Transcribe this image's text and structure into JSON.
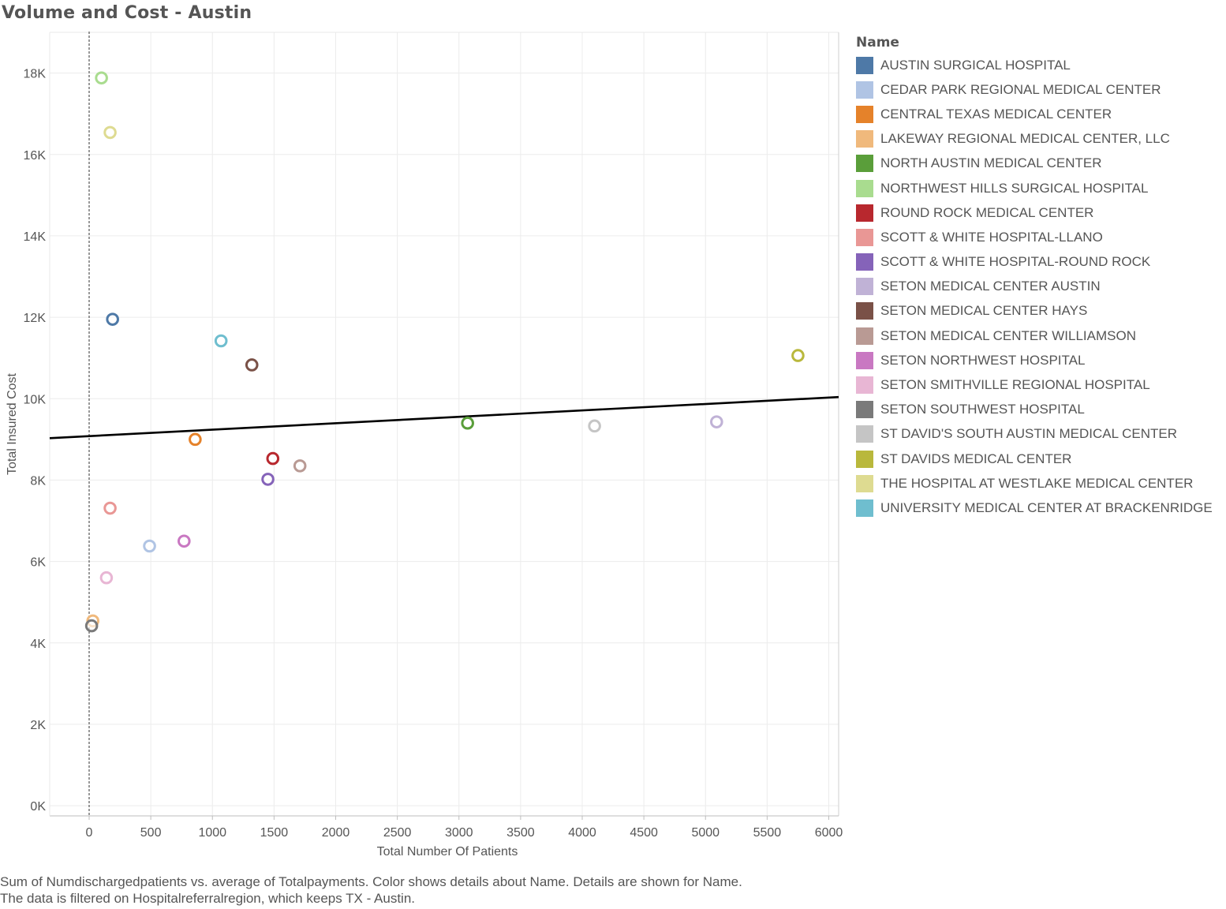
{
  "chart_data": {
    "type": "scatter",
    "title": "Volume and Cost - Austin",
    "xlabel": "Total Number Of Patients",
    "ylabel": "Total Insured Cost",
    "xlim": [
      -320,
      6080
    ],
    "ylim": [
      -250,
      19000
    ],
    "x_ticks": [
      {
        "value": 0,
        "label": "0"
      },
      {
        "value": 500,
        "label": "500"
      },
      {
        "value": 1000,
        "label": "1000"
      },
      {
        "value": 1500,
        "label": "1500"
      },
      {
        "value": 2000,
        "label": "2000"
      },
      {
        "value": 2500,
        "label": "2500"
      },
      {
        "value": 3000,
        "label": "3000"
      },
      {
        "value": 3500,
        "label": "3500"
      },
      {
        "value": 4000,
        "label": "4000"
      },
      {
        "value": 4500,
        "label": "4500"
      },
      {
        "value": 5000,
        "label": "5000"
      },
      {
        "value": 5500,
        "label": "5500"
      },
      {
        "value": 6000,
        "label": "6000"
      }
    ],
    "y_ticks": [
      {
        "value": 0,
        "label": "0K"
      },
      {
        "value": 2000,
        "label": "2K"
      },
      {
        "value": 4000,
        "label": "4K"
      },
      {
        "value": 6000,
        "label": "6K"
      },
      {
        "value": 8000,
        "label": "8K"
      },
      {
        "value": 10000,
        "label": "10K"
      },
      {
        "value": 12000,
        "label": "12K"
      },
      {
        "value": 14000,
        "label": "14K"
      },
      {
        "value": 16000,
        "label": "16K"
      },
      {
        "value": 18000,
        "label": "18K"
      }
    ],
    "grid": true,
    "legend_title": "Name",
    "legend_position": "right",
    "trend_line": {
      "x": [
        -320,
        6080
      ],
      "y": [
        9030,
        10040
      ]
    },
    "reference_line_x": 0,
    "series": [
      {
        "name": "AUSTIN SURGICAL HOSPITAL",
        "color": "#4e79a7",
        "x": 190,
        "y": 11950
      },
      {
        "name": "CEDAR PARK REGIONAL MEDICAL CENTER",
        "color": "#b0c4e4",
        "x": 490,
        "y": 6380
      },
      {
        "name": "CENTRAL TEXAS MEDICAL CENTER",
        "color": "#e5822a",
        "x": 860,
        "y": 9000
      },
      {
        "name": "LAKEWAY REGIONAL MEDICAL CENTER, LLC",
        "color": "#f0b97c",
        "x": 30,
        "y": 4540
      },
      {
        "name": "NORTH AUSTIN MEDICAL CENTER",
        "color": "#5a9e3a",
        "x": 3070,
        "y": 9400
      },
      {
        "name": "NORTHWEST HILLS SURGICAL HOSPITAL",
        "color": "#a9dc8f",
        "x": 100,
        "y": 17880
      },
      {
        "name": "ROUND ROCK MEDICAL CENTER",
        "color": "#b8282e",
        "x": 1490,
        "y": 8530
      },
      {
        "name": "SCOTT & WHITE HOSPITAL-LLANO",
        "color": "#e99795",
        "x": 170,
        "y": 7310
      },
      {
        "name": "SCOTT & WHITE HOSPITAL-ROUND ROCK",
        "color": "#8563b9",
        "x": 1450,
        "y": 8020
      },
      {
        "name": "SETON MEDICAL CENTER AUSTIN",
        "color": "#c0b2d6",
        "x": 5090,
        "y": 9430
      },
      {
        "name": "SETON MEDICAL CENTER HAYS",
        "color": "#7a5147",
        "x": 1320,
        "y": 10830
      },
      {
        "name": "SETON MEDICAL CENTER WILLIAMSON",
        "color": "#b99a94",
        "x": 1710,
        "y": 8350
      },
      {
        "name": "SETON  NORTHWEST HOSPITAL",
        "color": "#c978c2",
        "x": 770,
        "y": 6500
      },
      {
        "name": "SETON SMITHVILLE REGIONAL HOSPITAL",
        "color": "#e8b6d4",
        "x": 140,
        "y": 5600
      },
      {
        "name": "SETON SOUTHWEST HOSPITAL",
        "color": "#7a7a7a",
        "x": 20,
        "y": 4420
      },
      {
        "name": "ST DAVID'S SOUTH AUSTIN MEDICAL CENTER",
        "color": "#c5c5c5",
        "x": 4100,
        "y": 9330
      },
      {
        "name": "ST DAVIDS MEDICAL CENTER",
        "color": "#b9b83c",
        "x": 5750,
        "y": 11060
      },
      {
        "name": "THE HOSPITAL AT WESTLAKE MEDICAL CENTER",
        "color": "#dedb91",
        "x": 170,
        "y": 16540
      },
      {
        "name": "UNIVERSITY MEDICAL CENTER AT BRACKENRIDGE",
        "color": "#6fbecf",
        "x": 1070,
        "y": 11420
      }
    ]
  },
  "caption": {
    "line1": "Sum of Numdischargedpatients vs. average of Totalpayments.  Color shows details about Name.  Details are shown for Name.",
    "line2": "The data is filtered on Hospitalreferralregion, which keeps TX - Austin."
  }
}
